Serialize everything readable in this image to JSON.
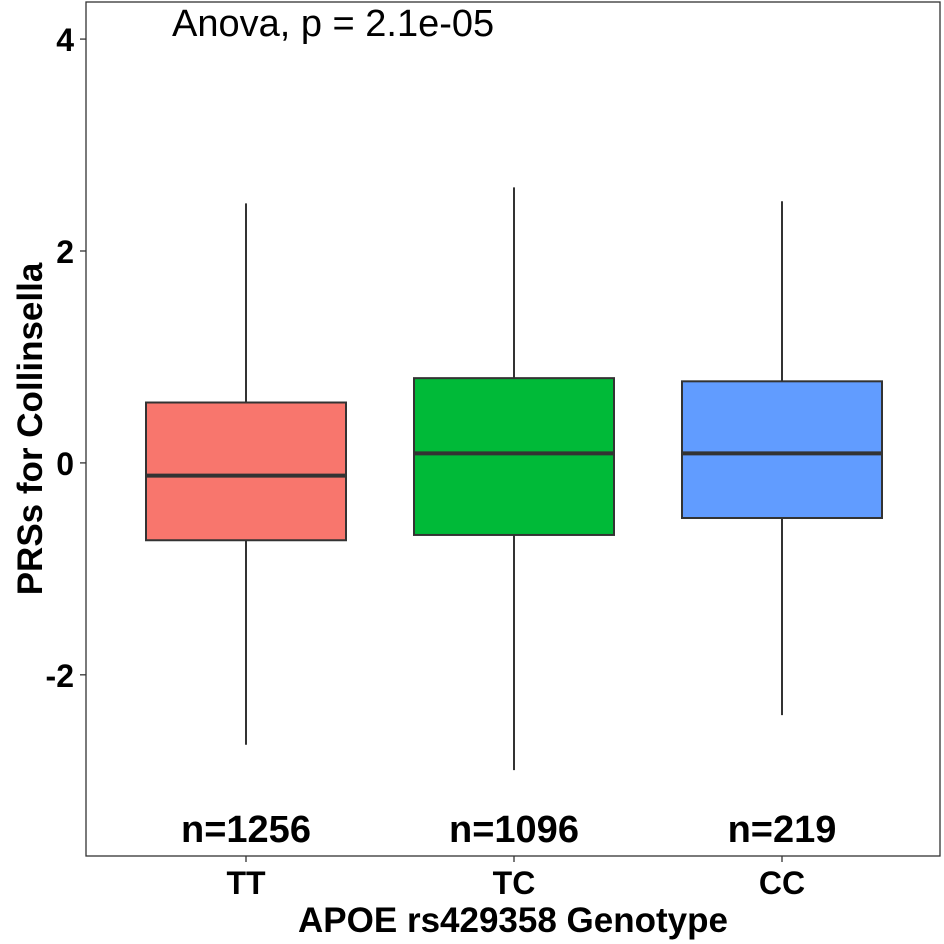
{
  "chart_data": {
    "type": "box",
    "annotation": "Anova, p = 2.1e-05",
    "xlabel": "APOE rs429358 Genotype",
    "ylabel": "PRSs for Collinsella",
    "ylim": [
      -3.71,
      4.35
    ],
    "yticks": [
      4,
      2,
      0,
      -2
    ],
    "ytick_labels": [
      "4",
      "2",
      "0",
      "-2"
    ],
    "categories": [
      "TT",
      "TC",
      "CC"
    ],
    "colors": [
      "#F8766D",
      "#00BA38",
      "#619CFF"
    ],
    "boxes": [
      {
        "category": "TT",
        "min": -2.66,
        "q1": -0.73,
        "median": -0.12,
        "q3": 0.57,
        "max": 2.45,
        "n_label": "n=1256"
      },
      {
        "category": "TC",
        "min": -2.9,
        "q1": -0.68,
        "median": 0.09,
        "q3": 0.8,
        "max": 2.6,
        "n_label": "n=1096"
      },
      {
        "category": "CC",
        "min": -2.38,
        "q1": -0.52,
        "median": 0.09,
        "q3": 0.77,
        "max": 2.47,
        "n_label": "n=219"
      }
    ],
    "grid": false,
    "legend": "none"
  }
}
